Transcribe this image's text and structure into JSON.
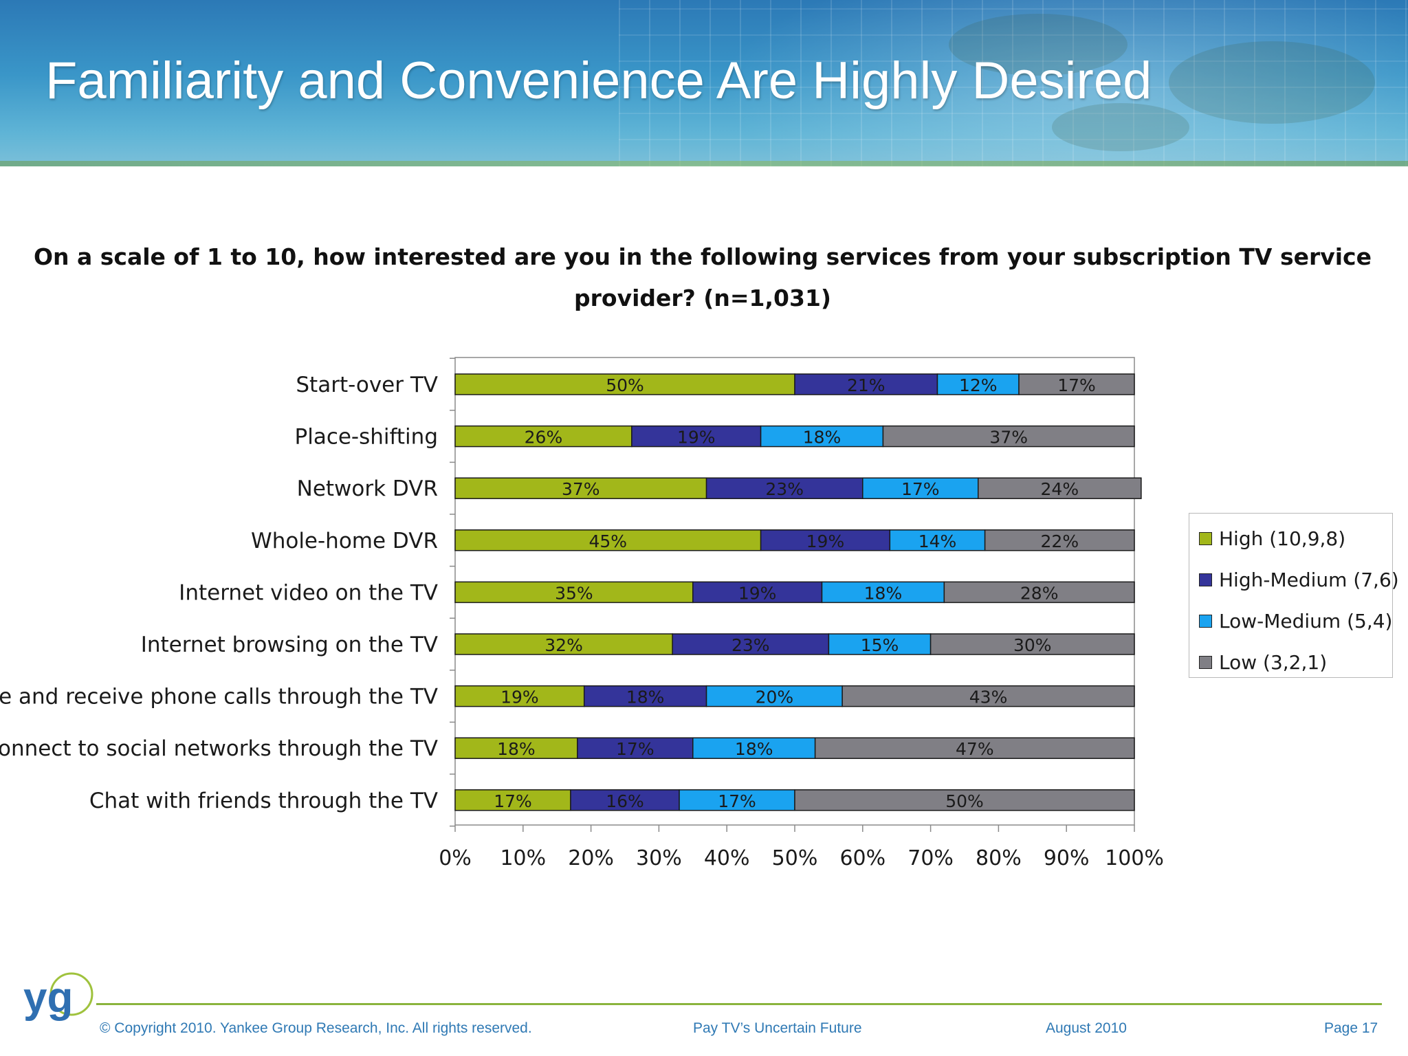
{
  "slide": {
    "title": "Familiarity and Convenience Are Highly Desired"
  },
  "chart_data": {
    "type": "bar",
    "orientation": "horizontal",
    "stacked": true,
    "title_lines": [
      "On a scale of 1 to 10, how interested are you in the following services from your subscription TV service",
      "provider? (n=1,031)"
    ],
    "categories": [
      "Start-over TV",
      "Place-shifting",
      "Network DVR",
      "Whole-home DVR",
      "Internet video on the TV",
      "Internet browsing on the TV",
      "Make and receive phone calls through the TV",
      "Connect to social networks through the TV",
      "Chat with friends through the TV"
    ],
    "series": [
      {
        "name": "High (10,9,8)",
        "color": "#a2b71a",
        "values": [
          50,
          26,
          37,
          45,
          35,
          32,
          19,
          18,
          17
        ]
      },
      {
        "name": "High-Medium (7,6)",
        "color": "#34349a",
        "values": [
          21,
          19,
          23,
          19,
          19,
          23,
          18,
          17,
          16
        ]
      },
      {
        "name": "Low-Medium (5,4)",
        "color": "#1aa3f0",
        "values": [
          12,
          18,
          17,
          14,
          18,
          15,
          20,
          18,
          17
        ]
      },
      {
        "name": "Low (3,2,1)",
        "color": "#807f85",
        "values": [
          17,
          37,
          24,
          22,
          28,
          30,
          43,
          47,
          50
        ]
      }
    ],
    "data_labels": [
      [
        "50%",
        "21%",
        "12%",
        "17%"
      ],
      [
        "26%",
        "19%",
        "18%",
        "37%"
      ],
      [
        "37%",
        "23%",
        "17%",
        "24%"
      ],
      [
        "45%",
        "19%",
        "14%",
        "22%"
      ],
      [
        "35%",
        "19%",
        "18%",
        "28%"
      ],
      [
        "32%",
        "23%",
        "15%",
        "30%"
      ],
      [
        "19%",
        "18%",
        "20%",
        "43%"
      ],
      [
        "18%",
        "17%",
        "18%",
        "47%"
      ],
      [
        "17%",
        "16%",
        "17%",
        "50%"
      ]
    ],
    "xlim": [
      0,
      100
    ],
    "x_ticks": [
      "0%",
      "10%",
      "20%",
      "30%",
      "40%",
      "50%",
      "60%",
      "70%",
      "80%",
      "90%",
      "100%"
    ],
    "legend_position": "right",
    "grid": false
  },
  "footer": {
    "logo": "yg",
    "copyright": "© Copyright 2010. Yankee Group Research, Inc.  All rights reserved.",
    "report": "Pay TV’s Uncertain Future",
    "date": "August 2010",
    "page": "Page 17"
  }
}
